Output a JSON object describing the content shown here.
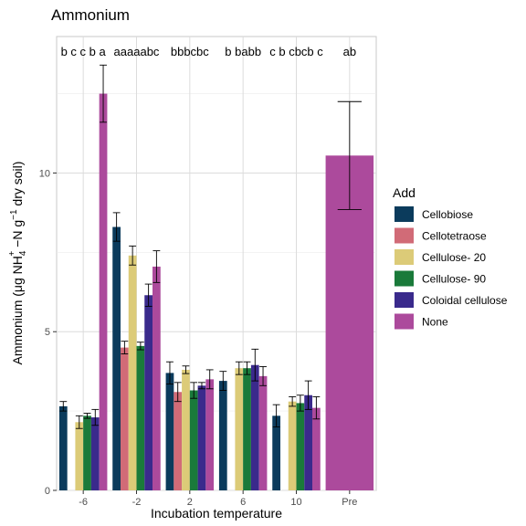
{
  "chart_data": {
    "type": "bar",
    "title": "Ammonium",
    "xlabel": "Incubation temperature",
    "ylabel_parts": {
      "pre": "Ammonium (μg NH",
      "sub": "4",
      "sup": "+",
      "mid": " −N g",
      "sup2": "−1",
      "post": " dry soil)"
    },
    "ylim": [
      0,
      14.3
    ],
    "yticks": [
      0,
      5,
      10
    ],
    "ytick_labels": [
      "0",
      "5",
      "10"
    ],
    "grid": true,
    "legend_position": "right",
    "legend_title": "Add",
    "categories": [
      "-6",
      "-2",
      "2",
      "6",
      "10",
      "Pre"
    ],
    "series": [
      {
        "name": "Cellobiose",
        "color": "#0b3b5c",
        "values": [
          2.65,
          8.3,
          3.7,
          3.45,
          2.35,
          null
        ],
        "errors": [
          0.15,
          0.45,
          0.35,
          0.3,
          0.35,
          null
        ]
      },
      {
        "name": "Cellotetraose",
        "color": "#d16b77",
        "values": [
          null,
          4.5,
          3.1,
          null,
          null,
          null
        ],
        "errors": [
          null,
          0.2,
          0.3,
          null,
          null,
          null
        ]
      },
      {
        "name": "Cellulose- 20",
        "color": "#dccb78",
        "values": [
          2.15,
          7.4,
          3.8,
          3.85,
          2.8,
          null
        ],
        "errors": [
          0.2,
          0.3,
          0.12,
          0.2,
          0.15,
          null
        ]
      },
      {
        "name": "Cellulose- 90",
        "color": "#1a7a3a",
        "values": [
          2.35,
          4.55,
          3.15,
          3.85,
          2.75,
          null
        ],
        "errors": [
          0.08,
          0.12,
          0.25,
          0.2,
          0.25,
          null
        ]
      },
      {
        "name": "Coloidal cellulose",
        "color": "#3a2a8c",
        "values": [
          2.3,
          6.15,
          3.3,
          3.95,
          3.0,
          null
        ],
        "errors": [
          0.25,
          0.35,
          0.1,
          0.5,
          0.45,
          null
        ]
      },
      {
        "name": "None",
        "color": "#ac4a9c",
        "values": [
          12.5,
          7.05,
          3.5,
          3.6,
          2.6,
          10.55
        ],
        "errors": [
          0.9,
          0.5,
          0.3,
          0.3,
          0.35,
          1.7
        ]
      }
    ],
    "annotations": [
      {
        "category": "-6",
        "text": "b c c b a"
      },
      {
        "category": "-2",
        "text": "aaaaabc"
      },
      {
        "category": "2",
        "text": "bbbcbc"
      },
      {
        "category": "6",
        "text": "b babb"
      },
      {
        "category": "10",
        "text": "c b cbcb c"
      },
      {
        "category": "Pre",
        "text": "ab"
      }
    ]
  }
}
